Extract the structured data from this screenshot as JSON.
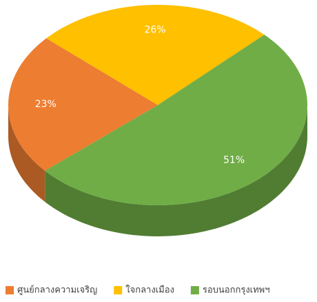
{
  "chart_data": {
    "type": "pie",
    "categories": [
      "ศูนย์กลางความเจริญ",
      "ใจกลางเมือง",
      "รอบนอกกรุงเทพฯ"
    ],
    "values": [
      23,
      26,
      51
    ],
    "value_labels": [
      "23%",
      "26%",
      "51%"
    ],
    "colors": [
      "#ed7d31",
      "#ffc000",
      "#70ad47"
    ],
    "legend": "bottom"
  }
}
